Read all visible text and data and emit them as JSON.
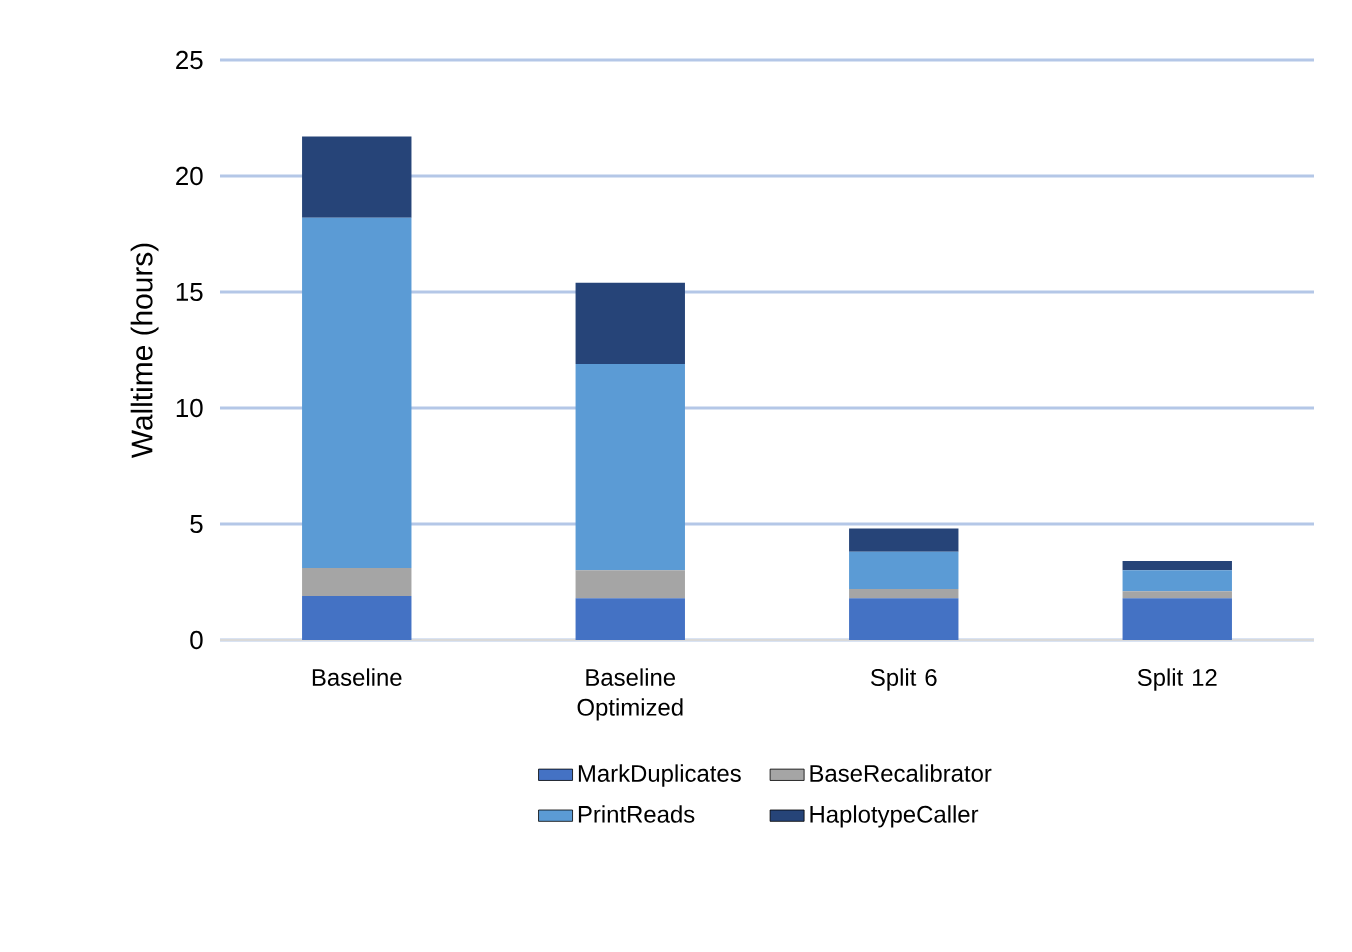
{
  "chart_data": {
    "type": "bar",
    "stacked": true,
    "ylabel": "Walltime (hours)",
    "categories": [
      "Baseline",
      "Baseline Optimized",
      "Split 6",
      "Split 12"
    ],
    "series": [
      {
        "name": "MarkDuplicates",
        "color": "#4472c4",
        "values": [
          1.9,
          1.8,
          1.8,
          1.8
        ]
      },
      {
        "name": "BaseRecalibrator",
        "color": "#a5a5a5",
        "values": [
          1.2,
          1.2,
          0.4,
          0.3
        ]
      },
      {
        "name": "PrintReads",
        "color": "#5b9bd5",
        "values": [
          15.1,
          8.9,
          1.6,
          0.9
        ]
      },
      {
        "name": "HaplotypeCaller",
        "color": "#264478",
        "values": [
          3.5,
          3.5,
          1.0,
          0.4
        ]
      }
    ],
    "ylim": [
      0,
      25
    ],
    "yticks": [
      0,
      5,
      10,
      15,
      20,
      25
    ],
    "grid": "y",
    "legend": "bottom"
  }
}
